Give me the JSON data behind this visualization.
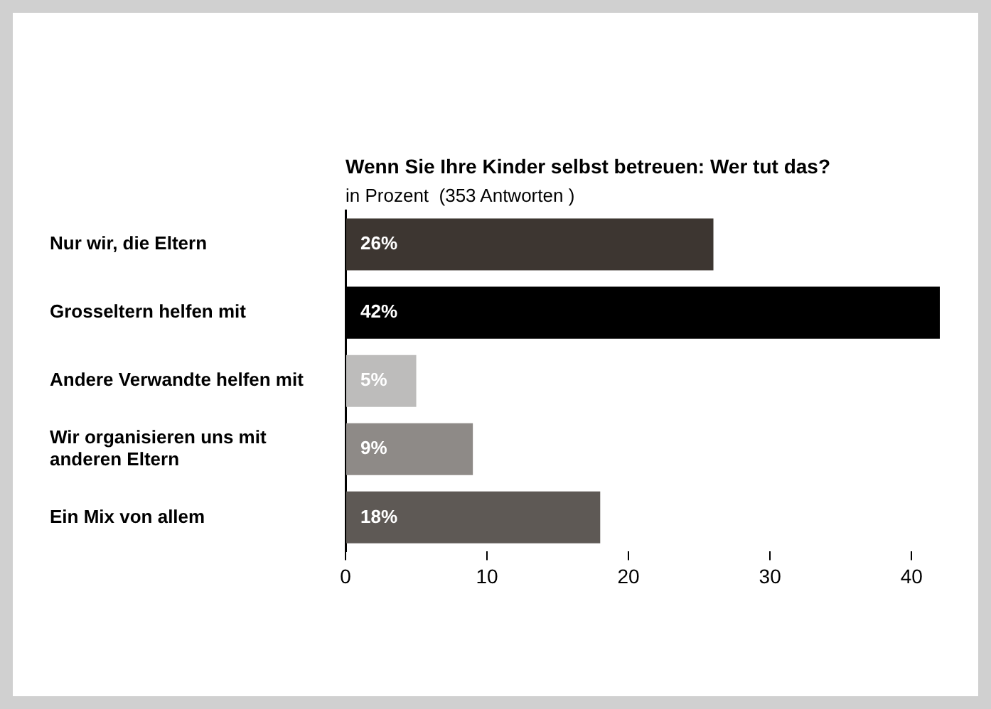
{
  "chart_data": {
    "type": "bar",
    "orientation": "horizontal",
    "title": "Wenn Sie Ihre Kinder selbst betreuen: Wer tut das?",
    "subtitle": "in Prozent  (353 Antworten )",
    "categories": [
      "Nur wir, die Eltern",
      "Grosseltern helfen mit",
      "Andere Verwandte helfen mit",
      "Wir organisieren uns mit anderen Eltern",
      "Ein Mix von allem"
    ],
    "values": [
      26,
      42,
      5,
      9,
      18
    ],
    "colors": [
      "#3d3631",
      "#000000",
      "#bdbcbb",
      "#8e8a87",
      "#5e5955"
    ],
    "value_labels": [
      "26%",
      "42%",
      "5%",
      "9%",
      "18%"
    ],
    "xlim": [
      0,
      42
    ],
    "xticks": [
      0,
      10,
      20,
      30,
      40
    ],
    "grid": false,
    "legend": false
  }
}
